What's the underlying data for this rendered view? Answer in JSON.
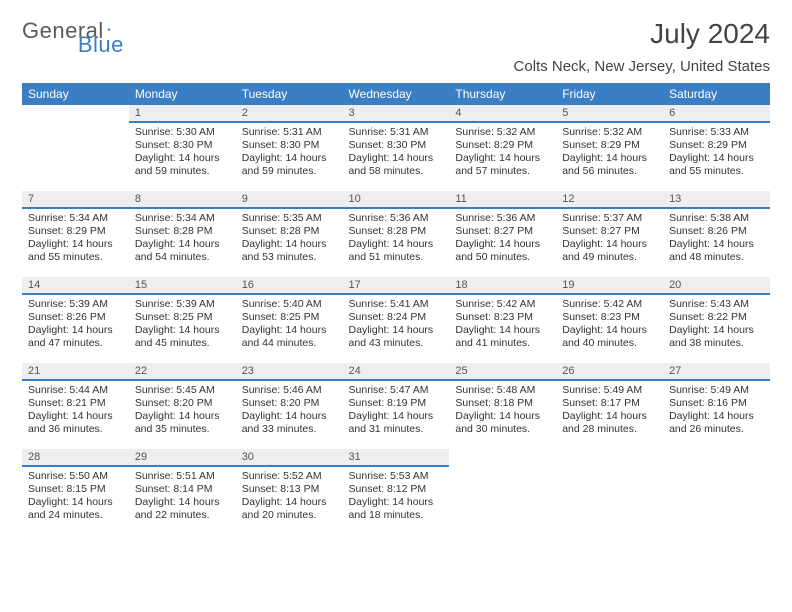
{
  "logo": {
    "text_gray": "General",
    "text_blue": "Blue"
  },
  "title": "July 2024",
  "location": "Colts Neck, New Jersey, United States",
  "colors": {
    "header_bg": "#3a7fc4",
    "header_text": "#ffffff",
    "daynum_bg": "#eeeeee",
    "daynum_border": "#3a7fc4",
    "body_text": "#333333",
    "page_bg": "#ffffff"
  },
  "weekdays": [
    "Sunday",
    "Monday",
    "Tuesday",
    "Wednesday",
    "Thursday",
    "Friday",
    "Saturday"
  ],
  "weeks": [
    [
      null,
      {
        "n": "1",
        "sr": "5:30 AM",
        "ss": "8:30 PM",
        "dl": "14 hours and 59 minutes."
      },
      {
        "n": "2",
        "sr": "5:31 AM",
        "ss": "8:30 PM",
        "dl": "14 hours and 59 minutes."
      },
      {
        "n": "3",
        "sr": "5:31 AM",
        "ss": "8:30 PM",
        "dl": "14 hours and 58 minutes."
      },
      {
        "n": "4",
        "sr": "5:32 AM",
        "ss": "8:29 PM",
        "dl": "14 hours and 57 minutes."
      },
      {
        "n": "5",
        "sr": "5:32 AM",
        "ss": "8:29 PM",
        "dl": "14 hours and 56 minutes."
      },
      {
        "n": "6",
        "sr": "5:33 AM",
        "ss": "8:29 PM",
        "dl": "14 hours and 55 minutes."
      }
    ],
    [
      {
        "n": "7",
        "sr": "5:34 AM",
        "ss": "8:29 PM",
        "dl": "14 hours and 55 minutes."
      },
      {
        "n": "8",
        "sr": "5:34 AM",
        "ss": "8:28 PM",
        "dl": "14 hours and 54 minutes."
      },
      {
        "n": "9",
        "sr": "5:35 AM",
        "ss": "8:28 PM",
        "dl": "14 hours and 53 minutes."
      },
      {
        "n": "10",
        "sr": "5:36 AM",
        "ss": "8:28 PM",
        "dl": "14 hours and 51 minutes."
      },
      {
        "n": "11",
        "sr": "5:36 AM",
        "ss": "8:27 PM",
        "dl": "14 hours and 50 minutes."
      },
      {
        "n": "12",
        "sr": "5:37 AM",
        "ss": "8:27 PM",
        "dl": "14 hours and 49 minutes."
      },
      {
        "n": "13",
        "sr": "5:38 AM",
        "ss": "8:26 PM",
        "dl": "14 hours and 48 minutes."
      }
    ],
    [
      {
        "n": "14",
        "sr": "5:39 AM",
        "ss": "8:26 PM",
        "dl": "14 hours and 47 minutes."
      },
      {
        "n": "15",
        "sr": "5:39 AM",
        "ss": "8:25 PM",
        "dl": "14 hours and 45 minutes."
      },
      {
        "n": "16",
        "sr": "5:40 AM",
        "ss": "8:25 PM",
        "dl": "14 hours and 44 minutes."
      },
      {
        "n": "17",
        "sr": "5:41 AM",
        "ss": "8:24 PM",
        "dl": "14 hours and 43 minutes."
      },
      {
        "n": "18",
        "sr": "5:42 AM",
        "ss": "8:23 PM",
        "dl": "14 hours and 41 minutes."
      },
      {
        "n": "19",
        "sr": "5:42 AM",
        "ss": "8:23 PM",
        "dl": "14 hours and 40 minutes."
      },
      {
        "n": "20",
        "sr": "5:43 AM",
        "ss": "8:22 PM",
        "dl": "14 hours and 38 minutes."
      }
    ],
    [
      {
        "n": "21",
        "sr": "5:44 AM",
        "ss": "8:21 PM",
        "dl": "14 hours and 36 minutes."
      },
      {
        "n": "22",
        "sr": "5:45 AM",
        "ss": "8:20 PM",
        "dl": "14 hours and 35 minutes."
      },
      {
        "n": "23",
        "sr": "5:46 AM",
        "ss": "8:20 PM",
        "dl": "14 hours and 33 minutes."
      },
      {
        "n": "24",
        "sr": "5:47 AM",
        "ss": "8:19 PM",
        "dl": "14 hours and 31 minutes."
      },
      {
        "n": "25",
        "sr": "5:48 AM",
        "ss": "8:18 PM",
        "dl": "14 hours and 30 minutes."
      },
      {
        "n": "26",
        "sr": "5:49 AM",
        "ss": "8:17 PM",
        "dl": "14 hours and 28 minutes."
      },
      {
        "n": "27",
        "sr": "5:49 AM",
        "ss": "8:16 PM",
        "dl": "14 hours and 26 minutes."
      }
    ],
    [
      {
        "n": "28",
        "sr": "5:50 AM",
        "ss": "8:15 PM",
        "dl": "14 hours and 24 minutes."
      },
      {
        "n": "29",
        "sr": "5:51 AM",
        "ss": "8:14 PM",
        "dl": "14 hours and 22 minutes."
      },
      {
        "n": "30",
        "sr": "5:52 AM",
        "ss": "8:13 PM",
        "dl": "14 hours and 20 minutes."
      },
      {
        "n": "31",
        "sr": "5:53 AM",
        "ss": "8:12 PM",
        "dl": "14 hours and 18 minutes."
      },
      null,
      null,
      null
    ]
  ],
  "labels": {
    "sunrise": "Sunrise: ",
    "sunset": "Sunset: ",
    "daylight": "Daylight: "
  }
}
